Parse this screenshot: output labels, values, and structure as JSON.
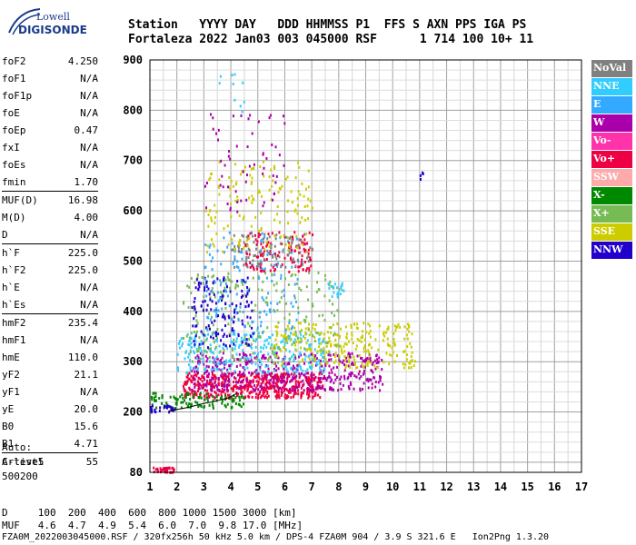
{
  "logo": {
    "line1": "Lowell",
    "line2": "DIGISONDE"
  },
  "header": {
    "row1": "Station   YYYY DAY   DDD HHMMSS P1  FFS S AXN PPS IGA PS",
    "row2": "Fortaleza 2022 Jan03 003 045000 RSF      1 714 100 10+ 11"
  },
  "params": [
    {
      "name": "foF2",
      "value": "4.250"
    },
    {
      "name": "foF1",
      "value": "N/A"
    },
    {
      "name": "foF1p",
      "value": "N/A"
    },
    {
      "name": "foE",
      "value": "N/A"
    },
    {
      "name": "foEp",
      "value": "0.47"
    },
    {
      "name": "fxI",
      "value": "N/A"
    },
    {
      "name": "foEs",
      "value": "N/A"
    },
    {
      "name": "fmin",
      "value": "1.70"
    },
    {
      "name": "MUF(D)",
      "value": "16.98"
    },
    {
      "name": "M(D)",
      "value": "4.00"
    },
    {
      "name": "D",
      "value": "N/A"
    },
    {
      "name": "h`F",
      "value": "225.0"
    },
    {
      "name": "h`F2",
      "value": "225.0"
    },
    {
      "name": "h`E",
      "value": "N/A"
    },
    {
      "name": "h`Es",
      "value": "N/A"
    },
    {
      "name": "hmF2",
      "value": "235.4"
    },
    {
      "name": "hmF1",
      "value": "N/A"
    },
    {
      "name": "hmE",
      "value": "110.0"
    },
    {
      "name": "yF2",
      "value": "21.1"
    },
    {
      "name": "yF1",
      "value": "N/A"
    },
    {
      "name": "yE",
      "value": "20.0"
    },
    {
      "name": "B0",
      "value": "15.6"
    },
    {
      "name": "B1",
      "value": "4.71"
    },
    {
      "name": "C-level",
      "value": "55"
    }
  ],
  "autoscaling": {
    "line1": "Auto:",
    "line2": "Artist5",
    "line3": "500200"
  },
  "legend": [
    {
      "label": "NoVal",
      "color": "#808080"
    },
    {
      "label": "NNE",
      "color": "#33ccff"
    },
    {
      "label": "E",
      "color": "#33aaff"
    },
    {
      "label": "W",
      "color": "#aa00aa"
    },
    {
      "label": "Vo-",
      "color": "#ff33aa"
    },
    {
      "label": "Vo+",
      "color": "#ee0044"
    },
    {
      "label": "SSW",
      "color": "#ffaaaa"
    },
    {
      "label": "X-",
      "color": "#008800"
    },
    {
      "label": "X+",
      "color": "#77bb55"
    },
    {
      "label": "SSE",
      "color": "#cccc00"
    },
    {
      "label": "NNW",
      "color": "#2200cc"
    }
  ],
  "footer": {
    "row1": "D     100  200  400  600  800 1000 1500 3000 [km]",
    "row2": "MUF   4.6  4.7  4.9  5.4  6.0  7.0  9.8 17.0 [MHz]",
    "row3": "FZA0M_2022003045000.RSF / 320fx256h 50 kHz 5.0 km / DPS-4 FZA0M 904 / 3.9 S 321.6 E   Ion2Png 1.3.20"
  },
  "chart_data": {
    "type": "scatter",
    "x_ticks": [
      "1",
      "2",
      "3",
      "4",
      "5",
      "6",
      "7",
      "8",
      "9",
      "10",
      "11",
      "12",
      "13",
      "14",
      "15",
      "16",
      "17"
    ],
    "y_ticks": [
      "200",
      "300",
      "400",
      "500",
      "600",
      "700",
      "800",
      "900"
    ],
    "xlim": [
      1,
      17
    ],
    "ylim": [
      80,
      900
    ],
    "grid": true,
    "trace": {
      "x": [
        1.7,
        1.9,
        2.1,
        2.4,
        2.7,
        3.0,
        3.3,
        3.6,
        3.9,
        4.1,
        4.25
      ],
      "y": [
        202,
        204,
        206,
        209,
        213,
        217,
        220,
        224,
        228,
        233,
        238
      ]
    },
    "echo_regions": [
      {
        "color": "#ee0044",
        "x": [
          2.2,
          7.4
        ],
        "y": [
          230,
          280
        ],
        "n": 520
      },
      {
        "color": "#aa00aa",
        "x": [
          2.5,
          9.6
        ],
        "y": [
          245,
          320
        ],
        "n": 450
      },
      {
        "color": "#33ccff",
        "x": [
          2.0,
          7.5
        ],
        "y": [
          280,
          360
        ],
        "n": 280
      },
      {
        "color": "#cccc00",
        "x": [
          5.5,
          10.8
        ],
        "y": [
          290,
          380
        ],
        "n": 260
      },
      {
        "color": "#77bb55",
        "x": [
          2.2,
          8.0
        ],
        "y": [
          300,
          480
        ],
        "n": 220
      },
      {
        "color": "#2200cc",
        "x": [
          2.5,
          4.8
        ],
        "y": [
          330,
          470
        ],
        "n": 140
      },
      {
        "color": "#33aaff",
        "x": [
          3.0,
          6.5
        ],
        "y": [
          360,
          560
        ],
        "n": 140
      },
      {
        "color": "#ee0044",
        "x": [
          4.5,
          7.0
        ],
        "y": [
          480,
          560
        ],
        "n": 120
      },
      {
        "color": "#808080",
        "x": [
          4.0,
          7.0
        ],
        "y": [
          490,
          560
        ],
        "n": 90
      },
      {
        "color": "#cccc00",
        "x": [
          3.0,
          7.0
        ],
        "y": [
          520,
          700
        ],
        "n": 150
      },
      {
        "color": "#aa00aa",
        "x": [
          3.0,
          6.0
        ],
        "y": [
          600,
          800
        ],
        "n": 60
      },
      {
        "color": "#33ccff",
        "x": [
          3.5,
          4.5
        ],
        "y": [
          780,
          880
        ],
        "n": 10
      },
      {
        "color": "#008800",
        "x": [
          1.0,
          4.5
        ],
        "y": [
          210,
          240
        ],
        "n": 110
      },
      {
        "color": "#2200cc",
        "x": [
          1.0,
          2.0
        ],
        "y": [
          200,
          215
        ],
        "n": 25
      },
      {
        "color": "#ee0044",
        "x": [
          1.1,
          1.9
        ],
        "y": [
          82,
          92
        ],
        "n": 40
      },
      {
        "color": "#33ccff",
        "x": [
          7.5,
          8.2
        ],
        "y": [
          430,
          460
        ],
        "n": 20
      },
      {
        "color": "#2200cc",
        "x": [
          11.0,
          11.1
        ],
        "y": [
          660,
          680
        ],
        "n": 5
      }
    ]
  }
}
